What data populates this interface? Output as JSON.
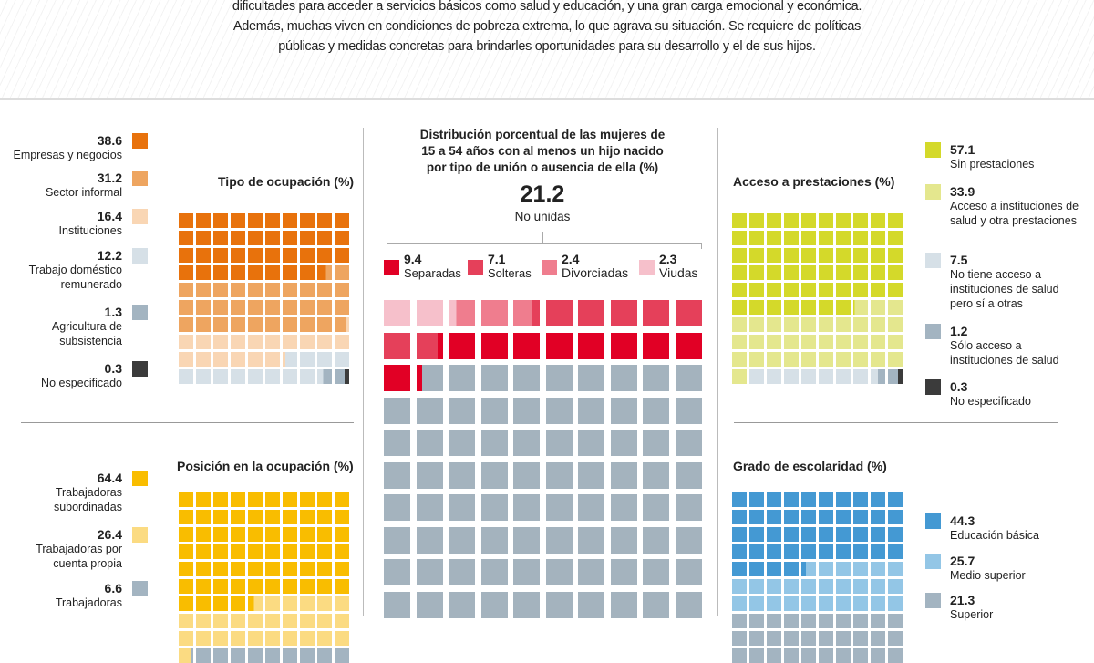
{
  "intro": [
    "dificultades para acceder a servicios básicos como salud y educación, y una gran carga emocional y económica.",
    "Además, muchas viven en condiciones de pobreza extrema, lo que agrava su situación. Se requiere de políticas",
    "públicas y medidas concretas para brindarles oportunidades para su desarrollo y el de sus hijos."
  ],
  "chart_data": [
    {
      "type": "waffle",
      "title": "Tipo de ocupación (%)",
      "categories": [
        {
          "name": "Empresas y negocios",
          "value": 38.6,
          "color": "#e8720c"
        },
        {
          "name": "Sector informal",
          "value": 31.2,
          "color": "#eea560"
        },
        {
          "name": "Instituciones",
          "value": 16.4,
          "color": "#f9d6b4"
        },
        {
          "name": "Trabajo doméstico remunerado",
          "value": 12.2,
          "color": "#d6e0e7"
        },
        {
          "name": "Agricultura de subsistencia",
          "value": 1.3,
          "color": "#a3b4c1"
        },
        {
          "name": "No especificado",
          "value": 0.3,
          "color": "#3b3b3b"
        }
      ]
    },
    {
      "type": "waffle",
      "title": "Distribución porcentual de las mujeres de 15 a 54 años con al menos un hijo nacido por tipo de unión o ausencia de ella (%)",
      "total": {
        "value": "21.2",
        "label": "No unidas"
      },
      "categories": [
        {
          "name": "Viudas",
          "value": 2.3,
          "color": "#f6c0cb"
        },
        {
          "name": "Divorciadas",
          "value": 2.4,
          "color": "#ef7d8e"
        },
        {
          "name": "Solteras",
          "value": 7.1,
          "color": "#e5405a"
        },
        {
          "name": "Separadas",
          "value": 9.4,
          "color": "#e10025"
        },
        {
          "value": 78.8,
          "color": "#a4b3be"
        }
      ]
    },
    {
      "type": "waffle",
      "title": "Acceso a prestaciones  (%)",
      "categories": [
        {
          "name": "Sin prestaciones",
          "value": 57.1,
          "color": "#d4d92a"
        },
        {
          "name": "Acceso a instituciones de salud y otra prestaciones",
          "value": 33.9,
          "color": "#e4e78e"
        },
        {
          "name": "No tiene acceso a instituciones de salud pero sí a otras",
          "value": 7.5,
          "color": "#d6e0e7"
        },
        {
          "name": "Sólo acceso a instituciones de salud",
          "value": 1.2,
          "color": "#a3b4c1"
        },
        {
          "name": "No especificado",
          "value": 0.3,
          "color": "#3b3b3b"
        }
      ]
    },
    {
      "type": "waffle",
      "title": "Posición en la ocupación  (%)",
      "categories": [
        {
          "name": "Trabajadoras subordinadas",
          "value": 64.4,
          "color": "#f9bd00"
        },
        {
          "name": "Trabajadoras por cuenta propia",
          "value": 26.4,
          "color": "#fbdb82"
        },
        {
          "name": "Trabajadoras",
          "value": 6.6,
          "color": "#a3b4c1"
        }
      ]
    },
    {
      "type": "waffle",
      "title": "Grado de escolaridad (%)",
      "categories": [
        {
          "name": "Educación básica",
          "value": 44.3,
          "color": "#4499d3"
        },
        {
          "name": "Medio superior",
          "value": 25.7,
          "color": "#93c6e6"
        },
        {
          "name": "Superior",
          "value": 21.3,
          "color": "#a3b4c1"
        }
      ]
    }
  ]
}
